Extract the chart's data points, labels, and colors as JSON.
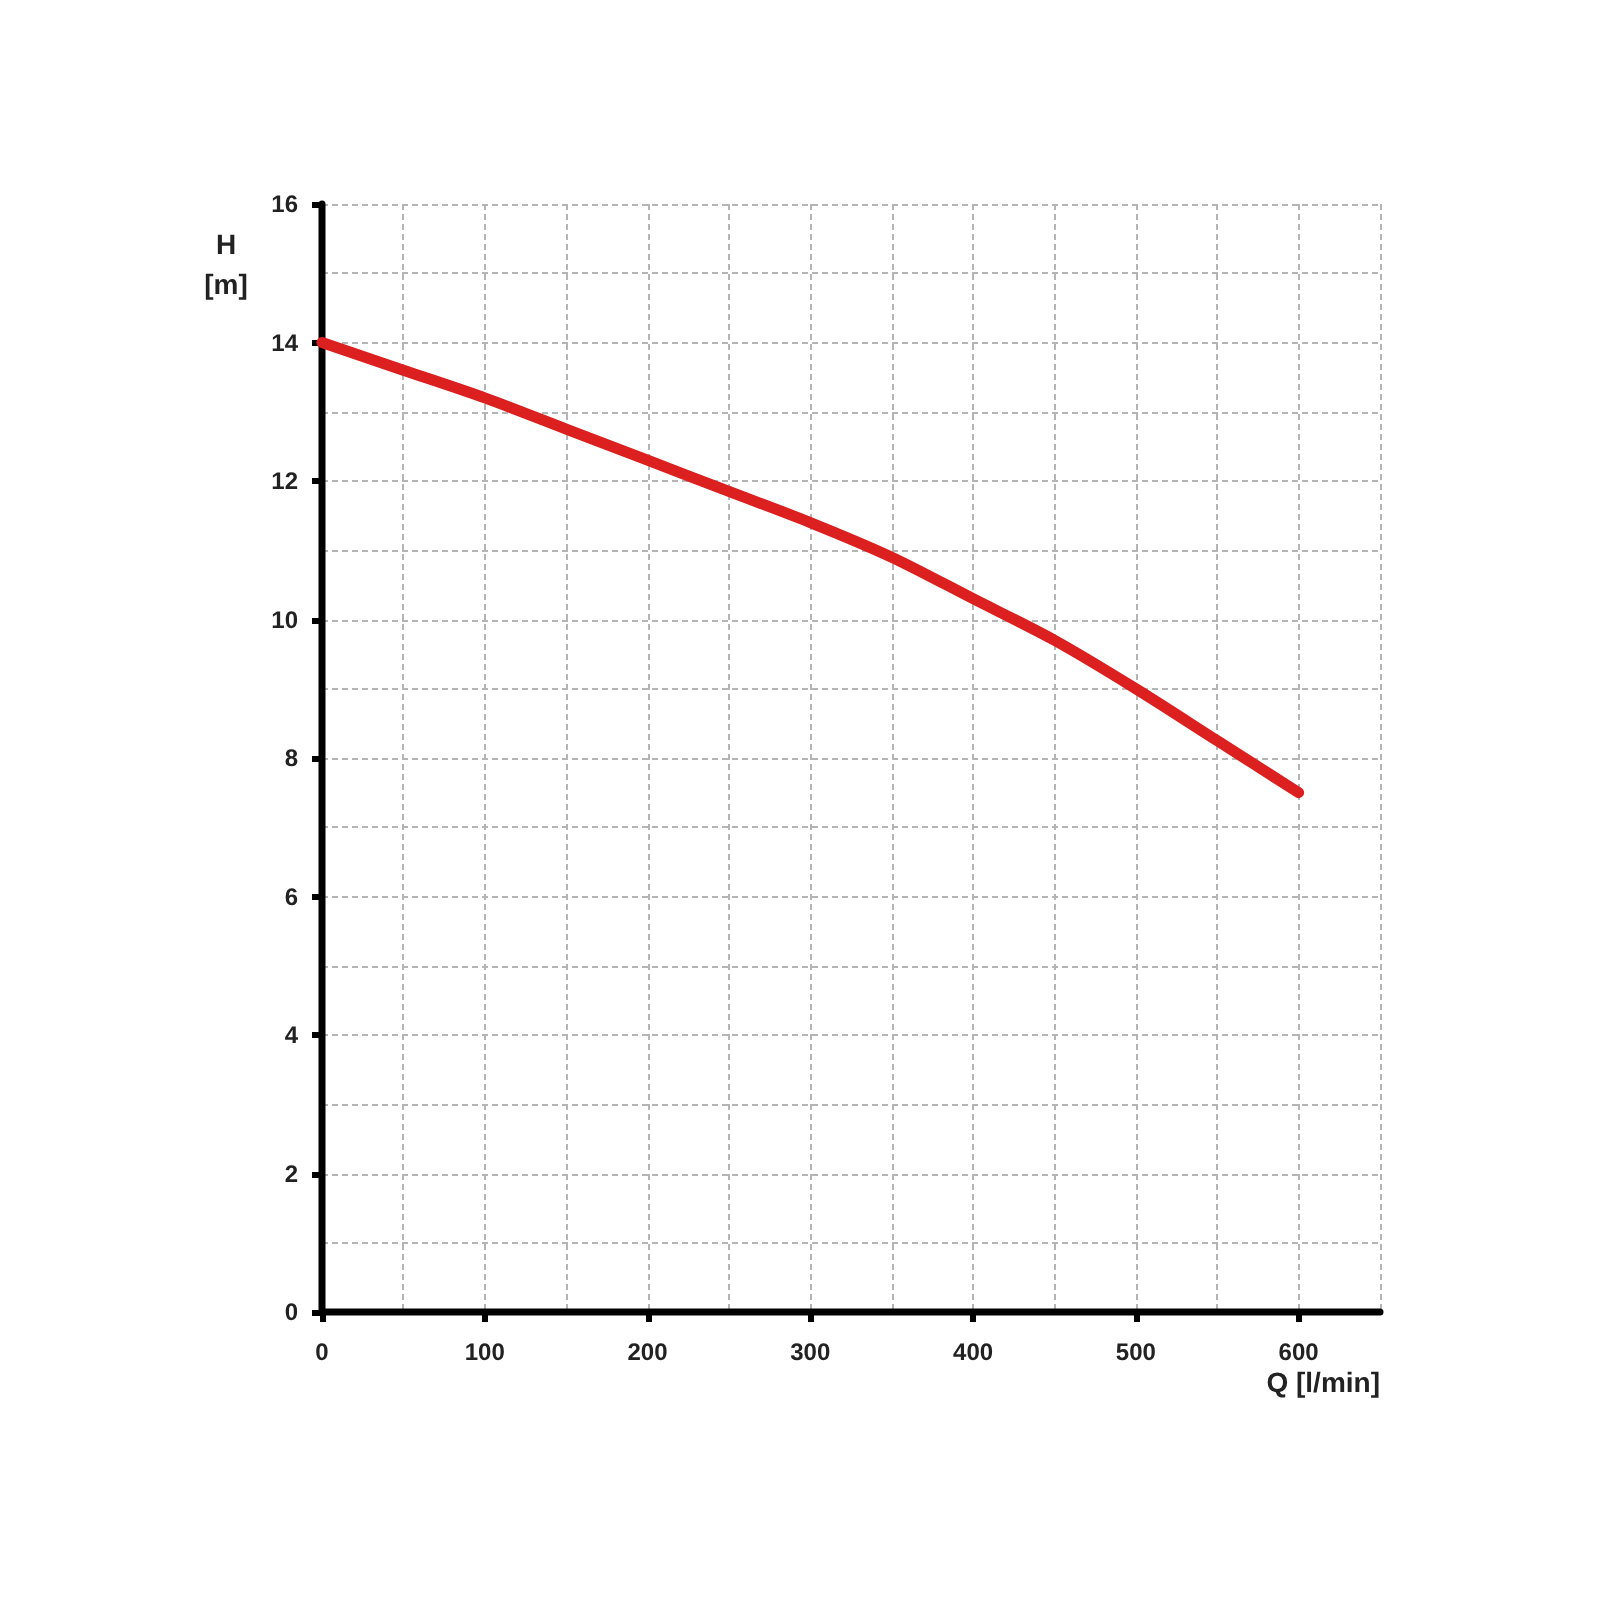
{
  "chart_data": {
    "type": "line",
    "xlabel": "Q [l/min]",
    "ylabel": "H [m]",
    "x": [
      0,
      50,
      100,
      150,
      200,
      250,
      300,
      350,
      400,
      450,
      500,
      550,
      600
    ],
    "series": [
      {
        "color": "#dc1f1f",
        "values": [
          14,
          13.6,
          13.2,
          12.75,
          12.3,
          11.85,
          11.4,
          10.9,
          10.3,
          9.7,
          9.0,
          8.25,
          7.5
        ]
      }
    ],
    "xlim": [
      0,
      650
    ],
    "ylim": [
      0,
      16
    ],
    "xticks": [
      0,
      {
        "value": 50,
        "label": null
      },
      100,
      {
        "value": 150,
        "label": null
      },
      200,
      {
        "value": 250,
        "label": null
      },
      300,
      {
        "value": 350,
        "label": null
      },
      400,
      {
        "value": 450,
        "label": null
      },
      500,
      {
        "value": 550,
        "label": null
      },
      600,
      {
        "value": 650,
        "label": null
      }
    ],
    "yticks": [
      0,
      {
        "value": 1,
        "label": null
      },
      2,
      {
        "value": 3,
        "label": null
      },
      4,
      {
        "value": 5,
        "label": null
      },
      6,
      {
        "value": 7,
        "label": null
      },
      8,
      {
        "value": 9,
        "label": null
      },
      10,
      {
        "value": 11,
        "label": null
      },
      12,
      {
        "value": 13,
        "label": null
      },
      14,
      {
        "value": 15,
        "label": null
      },
      16
    ],
    "grid": true,
    "marker": "none",
    "line_style": "solid"
  }
}
